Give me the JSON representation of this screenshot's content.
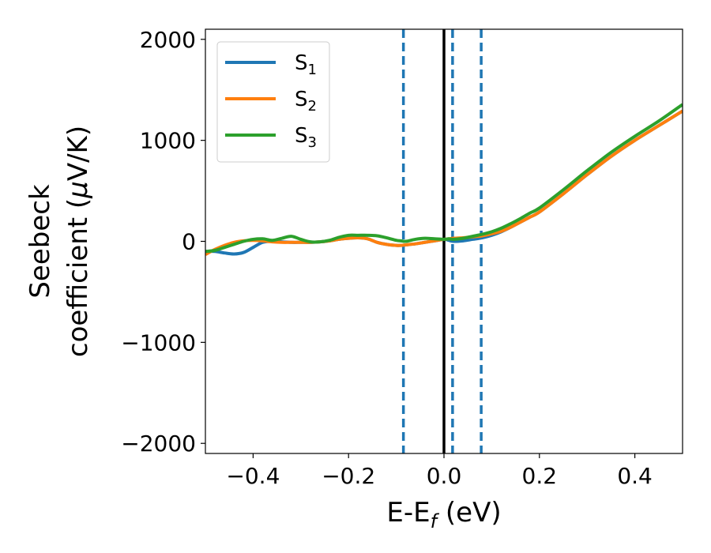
{
  "chart_data": {
    "type": "line",
    "xlabel": {
      "main": "E-E",
      "sub": "f",
      "unit": " (eV)"
    },
    "ylabel": {
      "line1": "Seebeck",
      "line2_main": "coefficient  (",
      "line2_mu": "μ",
      "line2_unit": "V/K)"
    },
    "xlim": [
      -0.5,
      0.5
    ],
    "ylim": [
      -2100,
      2100
    ],
    "xticks": [
      -0.4,
      -0.2,
      0.0,
      0.2,
      0.4
    ],
    "xtick_labels": [
      "−0.4",
      "−0.2",
      "0.0",
      "0.2",
      "0.4"
    ],
    "yticks": [
      -2000,
      -1000,
      0,
      1000,
      2000
    ],
    "ytick_labels": [
      "−2000",
      "−1000",
      "0",
      "1000",
      "2000"
    ],
    "grid": false,
    "legend_position": "top-left",
    "x": [
      -0.5,
      -0.48,
      -0.46,
      -0.44,
      -0.42,
      -0.4,
      -0.38,
      -0.36,
      -0.34,
      -0.32,
      -0.3,
      -0.28,
      -0.26,
      -0.24,
      -0.22,
      -0.2,
      -0.18,
      -0.16,
      -0.14,
      -0.12,
      -0.1,
      -0.09,
      -0.08,
      -0.06,
      -0.04,
      -0.02,
      0.0,
      0.01,
      0.02,
      0.04,
      0.06,
      0.08,
      0.1,
      0.12,
      0.14,
      0.16,
      0.18,
      0.2,
      0.25,
      0.3,
      0.35,
      0.4,
      0.45,
      0.5
    ],
    "series": [
      {
        "name": "S",
        "sub": "1",
        "color": "#1f77b4",
        "values": [
          -100,
          -100,
          -115,
          -125,
          -110,
          -60,
          -10,
          0,
          -5,
          -10,
          -10,
          -10,
          -5,
          5,
          20,
          30,
          35,
          25,
          -10,
          -30,
          -40,
          -40,
          -35,
          -25,
          -10,
          5,
          20,
          10,
          0,
          5,
          20,
          35,
          60,
          95,
          140,
          190,
          240,
          290,
          470,
          660,
          840,
          1000,
          1145,
          1290
        ]
      },
      {
        "name": "S",
        "sub": "2",
        "color": "#ff7f0e",
        "values": [
          -130,
          -80,
          -40,
          -10,
          5,
          10,
          5,
          -5,
          -10,
          -10,
          -10,
          -10,
          -5,
          5,
          20,
          30,
          35,
          25,
          -10,
          -30,
          -40,
          -40,
          -35,
          -25,
          -10,
          5,
          20,
          25,
          30,
          35,
          45,
          55,
          75,
          100,
          140,
          190,
          240,
          290,
          470,
          660,
          840,
          1000,
          1145,
          1290
        ]
      },
      {
        "name": "S",
        "sub": "3",
        "color": "#2ca02c",
        "values": [
          -100,
          -90,
          -60,
          -30,
          0,
          20,
          25,
          10,
          30,
          50,
          20,
          -5,
          -5,
          10,
          40,
          60,
          60,
          60,
          55,
          35,
          10,
          5,
          0,
          20,
          30,
          25,
          20,
          25,
          20,
          30,
          50,
          70,
          95,
          130,
          175,
          225,
          280,
          330,
          510,
          700,
          880,
          1040,
          1190,
          1355
        ]
      }
    ],
    "reference_lines": [
      {
        "x": 0.0,
        "style": "solid",
        "color": "#000000"
      },
      {
        "x": -0.085,
        "style": "dashed",
        "color": "#1f77b4"
      },
      {
        "x": 0.018,
        "style": "dashed",
        "color": "#1f77b4"
      },
      {
        "x": 0.078,
        "style": "dashed",
        "color": "#1f77b4"
      }
    ]
  }
}
